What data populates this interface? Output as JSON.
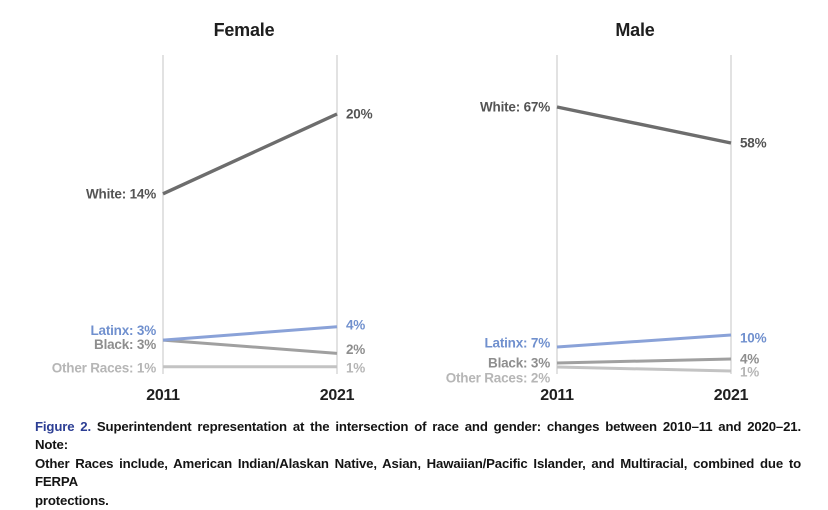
{
  "chart_data": {
    "type": "line",
    "variant": "slopegraph",
    "x_categories": [
      "2011",
      "2021"
    ],
    "grid": false,
    "legend": "inline-labels",
    "axis_color": "#d8d8d8",
    "panels": [
      {
        "title": "Female",
        "ylim": [
          0,
          24.5
        ],
        "series": [
          {
            "name": "White",
            "values": [
              14,
              20
            ],
            "start_label": "White: 14%",
            "end_label": "20%",
            "line_color": "#6d6d6d",
            "label_color": "#545454"
          },
          {
            "name": "Latinx",
            "values": [
              3,
              4
            ],
            "start_label": "Latinx: 3%",
            "end_label": "4%",
            "line_color": "#8aa2d8",
            "label_color": "#7090ce"
          },
          {
            "name": "Black",
            "values": [
              3,
              2
            ],
            "start_label": "Black: 3%",
            "end_label": "2%",
            "line_color": "#a0a0a0",
            "label_color": "#8e8e8e"
          },
          {
            "name": "Other Races",
            "values": [
              1,
              1
            ],
            "start_label": "Other Races: 1%",
            "end_label": "1%",
            "line_color": "#c3c3c3",
            "label_color": "#b6b6b6"
          }
        ]
      },
      {
        "title": "Male",
        "ylim": [
          0,
          80
        ],
        "series": [
          {
            "name": "White",
            "values": [
              67,
              58
            ],
            "start_label": "White: 67%",
            "end_label": "58%",
            "line_color": "#6d6d6d",
            "label_color": "#545454"
          },
          {
            "name": "Latinx",
            "values": [
              7,
              10
            ],
            "start_label": "Latinx: 7%",
            "end_label": "10%",
            "line_color": "#8aa2d8",
            "label_color": "#7090ce"
          },
          {
            "name": "Black",
            "values": [
              3,
              4
            ],
            "start_label": "Black: 3%",
            "end_label": "4%",
            "line_color": "#a0a0a0",
            "label_color": "#8e8e8e"
          },
          {
            "name": "Other Races",
            "values": [
              2,
              1
            ],
            "start_label": "Other Races: 2%",
            "end_label": "1%",
            "line_color": "#c3c3c3",
            "label_color": "#b6b6b6"
          }
        ]
      }
    ]
  },
  "caption": {
    "label": "Figure 2.",
    "label_color": "#2c3e94",
    "lines": [
      "Superintendent representation at the intersection of race and gender: changes between 2010–11 and 2020–21. Note:",
      "Other Races include, American Indian/Alaskan Native, Asian, Hawaiian/Pacific Islander, and Multiracial, combined due to FERPA",
      "protections."
    ]
  }
}
